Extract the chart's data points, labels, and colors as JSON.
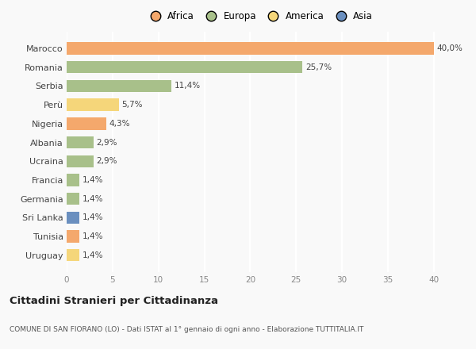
{
  "categories": [
    "Marocco",
    "Romania",
    "Serbia",
    "Perù",
    "Nigeria",
    "Albania",
    "Ucraina",
    "Francia",
    "Germania",
    "Sri Lanka",
    "Tunisia",
    "Uruguay"
  ],
  "values": [
    40.0,
    25.7,
    11.4,
    5.7,
    4.3,
    2.9,
    2.9,
    1.4,
    1.4,
    1.4,
    1.4,
    1.4
  ],
  "labels": [
    "40,0%",
    "25,7%",
    "11,4%",
    "5,7%",
    "4,3%",
    "2,9%",
    "2,9%",
    "1,4%",
    "1,4%",
    "1,4%",
    "1,4%",
    "1,4%"
  ],
  "colors": [
    "#F4A86C",
    "#A8C08A",
    "#A8C08A",
    "#F5D67A",
    "#F4A86C",
    "#A8C08A",
    "#A8C08A",
    "#A8C08A",
    "#A8C08A",
    "#6A8FBF",
    "#F4A86C",
    "#F5D67A"
  ],
  "legend_labels": [
    "Africa",
    "Europa",
    "America",
    "Asia"
  ],
  "legend_colors": [
    "#F4A86C",
    "#A8C08A",
    "#F5D67A",
    "#6A8FBF"
  ],
  "title": "Cittadini Stranieri per Cittadinanza",
  "subtitle": "COMUNE DI SAN FIORANO (LO) - Dati ISTAT al 1° gennaio di ogni anno - Elaborazione TUTTITALIA.IT",
  "xlim": [
    0,
    42
  ],
  "xticks": [
    0,
    5,
    10,
    15,
    20,
    25,
    30,
    35,
    40
  ],
  "background_color": "#f9f9f9",
  "grid_color": "#ffffff",
  "bar_height": 0.65,
  "label_fontsize": 7.5,
  "ytick_fontsize": 8,
  "xtick_fontsize": 7.5
}
